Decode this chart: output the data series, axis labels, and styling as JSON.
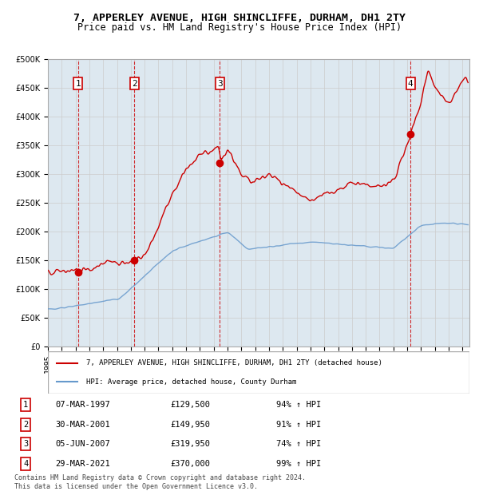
{
  "title": "7, APPERLEY AVENUE, HIGH SHINCLIFFE, DURHAM, DH1 2TY",
  "subtitle": "Price paid vs. HM Land Registry's House Price Index (HPI)",
  "sale_dates": [
    1997.18,
    2001.25,
    2007.43,
    2021.24
  ],
  "sale_prices": [
    129500,
    149950,
    319950,
    370000
  ],
  "sale_labels": [
    "1",
    "2",
    "3",
    "4"
  ],
  "legend_line1": "7, APPERLEY AVENUE, HIGH SHINCLIFFE, DURHAM, DH1 2TY (detached house)",
  "legend_line2": "HPI: Average price, detached house, County Durham",
  "table_rows": [
    [
      "1",
      "07-MAR-1997",
      "£129,500",
      "94% ↑ HPI"
    ],
    [
      "2",
      "30-MAR-2001",
      "£149,950",
      "91% ↑ HPI"
    ],
    [
      "3",
      "05-JUN-2007",
      "£319,950",
      "74% ↑ HPI"
    ],
    [
      "4",
      "29-MAR-2021",
      "£370,000",
      "99% ↑ HPI"
    ]
  ],
  "footer": "Contains HM Land Registry data © Crown copyright and database right 2024.\nThis data is licensed under the Open Government Licence v3.0.",
  "red_color": "#cc0000",
  "blue_color": "#6699cc",
  "bg_color": "#dde8f0",
  "plot_bg": "#ffffff",
  "grid_color": "#cccccc",
  "dashed_color": "#cc0000",
  "ylim": [
    0,
    500000
  ],
  "xlim_start": 1995.0,
  "xlim_end": 2025.5
}
